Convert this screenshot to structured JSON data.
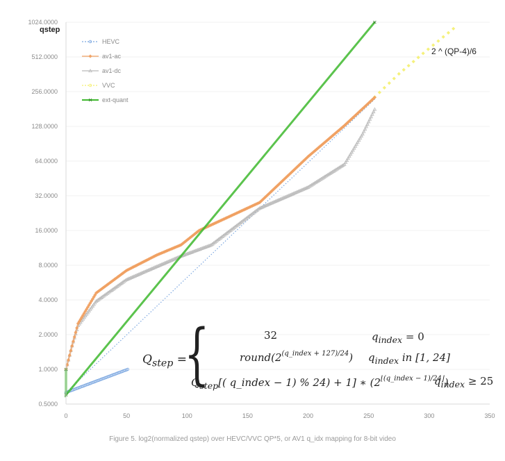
{
  "chart_data": {
    "type": "line",
    "y_axis_title": "qstep",
    "y_scale": "log2",
    "x_ticks": [
      "0",
      "50",
      "100",
      "150",
      "200",
      "250",
      "300",
      "350"
    ],
    "x_tick_values": [
      0,
      50,
      100,
      150,
      200,
      250,
      300,
      350
    ],
    "y_ticks": [
      "0.5000",
      "1.0000",
      "2.0000",
      "4.0000",
      "8.0000",
      "16.0000",
      "32.0000",
      "64.0000",
      "128.0000",
      "256.0000",
      "512.0000",
      "1024.0000"
    ],
    "y_tick_values": [
      0.5,
      1,
      2,
      4,
      8,
      16,
      32,
      64,
      128,
      256,
      512,
      1024
    ],
    "xlim": [
      0,
      350
    ],
    "ylim": [
      0.5,
      1024
    ],
    "legend_position": "top-left",
    "series": [
      {
        "name": "HEVC",
        "color": "#7aa6e0",
        "marker": "circle",
        "dashed": true,
        "x": [
          0,
          51
        ],
        "y": [
          0.63,
          1.0
        ]
      },
      {
        "name": "av1-ac",
        "color": "#f0a060",
        "marker": "diamond",
        "dashed": false,
        "x": [
          0,
          5,
          10,
          25,
          50,
          75,
          95,
          110,
          130,
          160,
          200,
          230,
          255
        ],
        "y": [
          1.0,
          1.6,
          2.5,
          4.6,
          7.2,
          9.8,
          12.0,
          16.0,
          20.0,
          28.0,
          70.0,
          130.0,
          228.0
        ]
      },
      {
        "name": "av1-dc",
        "color": "#b9b9b9",
        "marker": "triangle",
        "dashed": false,
        "x": [
          0,
          5,
          10,
          25,
          50,
          75,
          95,
          120,
          160,
          200,
          230,
          245,
          255
        ],
        "y": [
          1.0,
          1.6,
          2.4,
          3.9,
          6.0,
          7.8,
          9.6,
          12.0,
          25.0,
          38.0,
          60.0,
          110.0,
          180.0
        ]
      },
      {
        "name": "VVC",
        "color": "#f4ef6e",
        "marker": "circle",
        "dashed": true,
        "x": [
          255,
          275,
          295,
          320
        ],
        "y": [
          230,
          365,
          550,
          900
        ]
      },
      {
        "name": "ext-quant",
        "color": "#3eb82e",
        "marker": "cross",
        "dashed": false,
        "x": [
          0,
          0,
          255
        ],
        "y": [
          1.0,
          0.6,
          1024
        ]
      }
    ],
    "hevc_dotted_line": {
      "x": [
        0,
        255
      ],
      "y": [
        0.63,
        220
      ]
    },
    "annotation": "2 ^ (QP-4)/6",
    "caption": "Figure 5. log2(normalized qstep) over HEVC/VVC QP*5, or AV1 q_idx mapping for 8-bit video",
    "formula": {
      "lhs": "Q",
      "lhs_sub": "step",
      "eq": "=",
      "row1_value": "32",
      "row1_condition": "q",
      "row1_condition_sub": "index",
      "row1_condition_rest": " = 0",
      "row2_value": "round(2",
      "row2_exponent": "(q_index + 127)/24",
      "row2_value_end": ")",
      "row2_condition": "q",
      "row2_condition_sub": "index",
      "row2_condition_rest": " in [1, 24]",
      "row3_value": "Q",
      "row3_value_sub": "step",
      "row3_value_rest": "[( q_index − 1) % 24) + 1] ∗ (2",
      "row3_exponent": "⌊(q_index − 1)/24⌋",
      "row3_value_end": ")",
      "row3_condition": "q",
      "row3_condition_sub": "index",
      "row3_condition_rest": " ≥ 25"
    }
  }
}
